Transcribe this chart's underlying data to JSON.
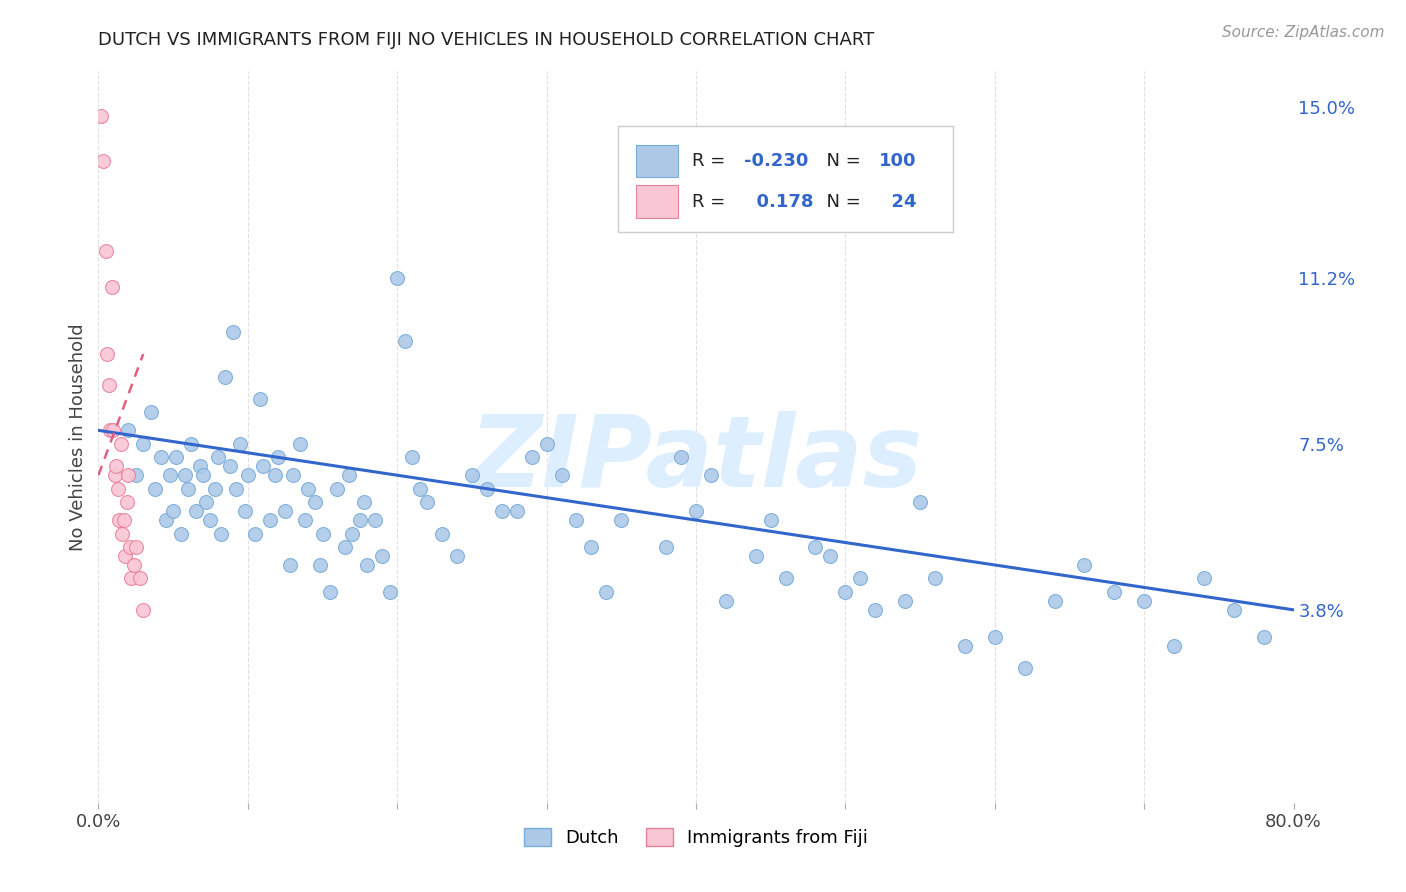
{
  "title": "DUTCH VS IMMIGRANTS FROM FIJI NO VEHICLES IN HOUSEHOLD CORRELATION CHART",
  "source": "Source: ZipAtlas.com",
  "ylabel": "No Vehicles in Household",
  "x_min": 0.0,
  "x_max": 0.8,
  "y_min": -0.005,
  "y_max": 0.158,
  "x_ticks": [
    0.0,
    0.1,
    0.2,
    0.3,
    0.4,
    0.5,
    0.6,
    0.7,
    0.8
  ],
  "x_tick_labels": [
    "0.0%",
    "",
    "",
    "",
    "",
    "",
    "",
    "",
    "80.0%"
  ],
  "y_tick_labels_right": [
    "15.0%",
    "11.2%",
    "7.5%",
    "3.8%"
  ],
  "y_tick_vals_right": [
    0.15,
    0.112,
    0.075,
    0.038
  ],
  "legend_dutch_R": "-0.230",
  "legend_dutch_N": "100",
  "legend_fiji_R": "0.178",
  "legend_fiji_N": "24",
  "dutch_color": "#adc9e8",
  "dutch_edge_color": "#7aacda",
  "fiji_color": "#f9c6d4",
  "fiji_edge_color": "#e8809a",
  "trend_dutch_color": "#3366cc",
  "trend_fiji_color": "#e06080",
  "watermark_text": "ZIPatlas",
  "watermark_color": "#ddeeff",
  "dutch_scatter_x": [
    0.02,
    0.025,
    0.03,
    0.035,
    0.038,
    0.042,
    0.045,
    0.048,
    0.05,
    0.052,
    0.055,
    0.058,
    0.06,
    0.062,
    0.065,
    0.068,
    0.07,
    0.072,
    0.075,
    0.078,
    0.08,
    0.082,
    0.085,
    0.088,
    0.09,
    0.092,
    0.095,
    0.098,
    0.1,
    0.105,
    0.108,
    0.11,
    0.115,
    0.118,
    0.12,
    0.125,
    0.128,
    0.13,
    0.135,
    0.138,
    0.14,
    0.145,
    0.148,
    0.15,
    0.155,
    0.16,
    0.165,
    0.168,
    0.17,
    0.175,
    0.178,
    0.18,
    0.185,
    0.19,
    0.195,
    0.2,
    0.205,
    0.21,
    0.215,
    0.22,
    0.23,
    0.24,
    0.25,
    0.26,
    0.27,
    0.28,
    0.29,
    0.3,
    0.31,
    0.32,
    0.33,
    0.34,
    0.35,
    0.38,
    0.4,
    0.42,
    0.44,
    0.46,
    0.48,
    0.5,
    0.52,
    0.54,
    0.56,
    0.58,
    0.6,
    0.62,
    0.64,
    0.66,
    0.68,
    0.7,
    0.72,
    0.74,
    0.76,
    0.78,
    0.39,
    0.41,
    0.45,
    0.49,
    0.51,
    0.55
  ],
  "dutch_scatter_y": [
    0.078,
    0.068,
    0.075,
    0.082,
    0.065,
    0.072,
    0.058,
    0.068,
    0.06,
    0.072,
    0.055,
    0.068,
    0.065,
    0.075,
    0.06,
    0.07,
    0.068,
    0.062,
    0.058,
    0.065,
    0.072,
    0.055,
    0.09,
    0.07,
    0.1,
    0.065,
    0.075,
    0.06,
    0.068,
    0.055,
    0.085,
    0.07,
    0.058,
    0.068,
    0.072,
    0.06,
    0.048,
    0.068,
    0.075,
    0.058,
    0.065,
    0.062,
    0.048,
    0.055,
    0.042,
    0.065,
    0.052,
    0.068,
    0.055,
    0.058,
    0.062,
    0.048,
    0.058,
    0.05,
    0.042,
    0.112,
    0.098,
    0.072,
    0.065,
    0.062,
    0.055,
    0.05,
    0.068,
    0.065,
    0.06,
    0.06,
    0.072,
    0.075,
    0.068,
    0.058,
    0.052,
    0.042,
    0.058,
    0.052,
    0.06,
    0.04,
    0.05,
    0.045,
    0.052,
    0.042,
    0.038,
    0.04,
    0.045,
    0.03,
    0.032,
    0.025,
    0.04,
    0.048,
    0.042,
    0.04,
    0.03,
    0.045,
    0.038,
    0.032,
    0.072,
    0.068,
    0.058,
    0.05,
    0.045,
    0.062
  ],
  "fiji_scatter_x": [
    0.002,
    0.003,
    0.005,
    0.006,
    0.007,
    0.008,
    0.009,
    0.01,
    0.011,
    0.012,
    0.013,
    0.014,
    0.015,
    0.016,
    0.017,
    0.018,
    0.019,
    0.02,
    0.021,
    0.022,
    0.024,
    0.025,
    0.028,
    0.03
  ],
  "fiji_scatter_y": [
    0.148,
    0.138,
    0.118,
    0.095,
    0.088,
    0.078,
    0.11,
    0.078,
    0.068,
    0.07,
    0.065,
    0.058,
    0.075,
    0.055,
    0.058,
    0.05,
    0.062,
    0.068,
    0.052,
    0.045,
    0.048,
    0.052,
    0.045,
    0.038
  ],
  "dutch_trend_x": [
    0.0,
    0.8
  ],
  "dutch_trend_y": [
    0.078,
    0.038
  ],
  "fiji_trend_x": [
    0.0,
    0.03
  ],
  "fiji_trend_y": [
    0.068,
    0.095
  ],
  "background_color": "#ffffff",
  "grid_color": "#e0e0e0",
  "marker_size": 100
}
